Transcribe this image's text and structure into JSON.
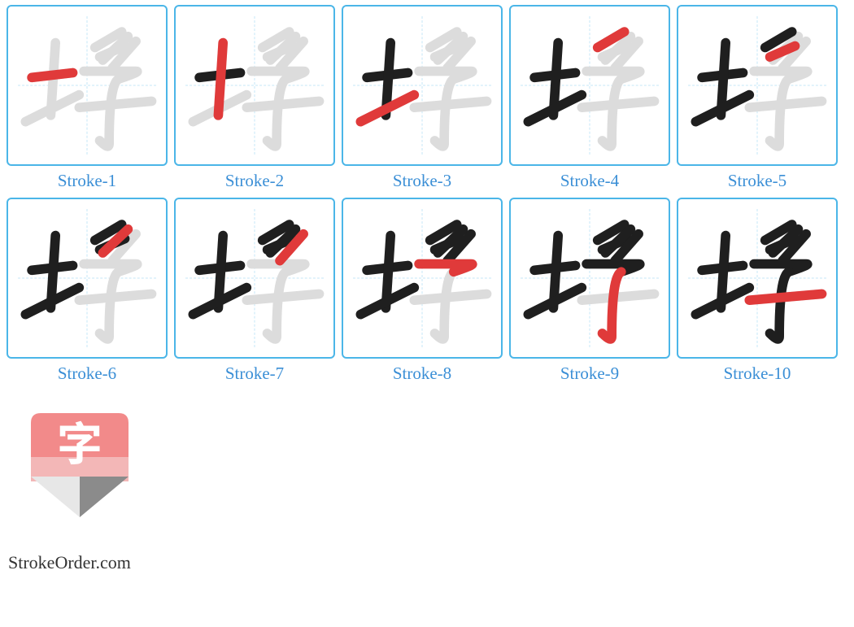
{
  "colors": {
    "tile_border": "#4bb6e8",
    "guide": "#bfe5f7",
    "ghost": "#dcdcdc",
    "done": "#1f1f1f",
    "current": "#e03a3a",
    "caption": "#3b8fd6",
    "site_text": "#333333",
    "logo_top": "#f28a8a",
    "logo_mid": "#f3b7b7",
    "logo_pencil_light": "#e7e7e7",
    "logo_pencil_dark": "#8b8b8b",
    "logo_char": "#ffffff"
  },
  "strokes": [
    "M 30 90 L 82 84",
    "M 60 46 L 54 138",
    "M 22 146 L 90 112",
    "M 110 52 L 144 32",
    "M 116 64 L 148 50",
    "M 152 38 L 120 68",
    "M 162 44 L 132 78",
    "M 96 82 L 162 82 Q 170 82 140 92",
    "M 140 92 Q 128 98 128 174 Q 128 182 116 170",
    "M 90 128 L 182 120"
  ],
  "reveal_per_tile": [
    1,
    2,
    3,
    4,
    5,
    6,
    7,
    8,
    9,
    10
  ],
  "captions": [
    "Stroke-1",
    "Stroke-2",
    "Stroke-3",
    "Stroke-4",
    "Stroke-5",
    "Stroke-6",
    "Stroke-7",
    "Stroke-8",
    "Stroke-9",
    "Stroke-10"
  ],
  "site": "StrokeOrder.com",
  "logo_char": "字"
}
